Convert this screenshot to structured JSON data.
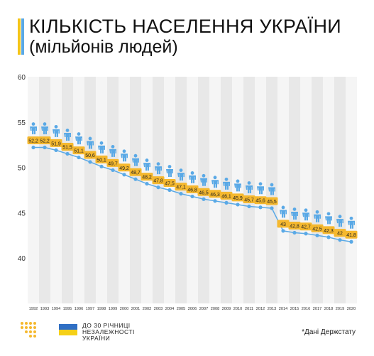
{
  "header": {
    "title": "КІЛЬКІСТЬ НАСЕЛЕННЯ УКРАЇНИ",
    "subtitle": "(мільйонів людей)"
  },
  "footer": {
    "anniversary_lines": [
      "ДО 30 РІЧНИЦІ",
      "НЕЗАЛЕЖНОСТІ",
      "УКРАЇНИ"
    ],
    "source": "*Дані Держстату"
  },
  "colors": {
    "accent_yellow": "#f5b82e",
    "series_blue": "#5aa9e6",
    "band_grey": "#e8e8e8",
    "flag_blue": "#2f6fc4",
    "flag_yellow": "#f5d018"
  },
  "icons": {
    "person": "person-icon",
    "logo": "dots-grid-logo-icon"
  },
  "chart_data": {
    "type": "line",
    "x": [
      "1992",
      "1993",
      "1994",
      "1995",
      "1996",
      "1997",
      "1998",
      "1999",
      "2000",
      "2001",
      "2002",
      "2003",
      "2004",
      "2005",
      "2006",
      "2007",
      "2008",
      "2009",
      "2010",
      "2011",
      "2012",
      "2013",
      "2014",
      "2015",
      "2016",
      "2017",
      "2018",
      "2019",
      "2020"
    ],
    "series": [
      {
        "values": [
          52.2,
          52.2,
          51.9,
          51.5,
          51.1,
          50.6,
          50.1,
          49.7,
          49.2,
          48.7,
          48.2,
          47.8,
          47.5,
          47.1,
          46.8,
          46.5,
          46.3,
          46.1,
          45.9,
          45.7,
          45.6,
          45.5,
          43,
          42.8,
          42.7,
          42.5,
          42.3,
          42,
          41.8
        ]
      }
    ],
    "value_labels": [
      "52,2",
      "52,2",
      "51,9",
      "51,5",
      "51,1",
      "50,6",
      "50,1",
      "49,7",
      "49,2",
      "48,7",
      "48,2",
      "47,8",
      "47,5",
      "47,1",
      "46,8",
      "46,5",
      "46,3",
      "46,1",
      "45,9",
      "45,7",
      "45,6",
      "45,5",
      "43",
      "42,8",
      "42,7",
      "42,5",
      "42,3",
      "42",
      "41,8"
    ],
    "y_ticks": [
      "40",
      "45",
      "50",
      "55",
      "60"
    ],
    "ylim": [
      35,
      60
    ],
    "grid": false,
    "bands": "alternating vertical grey bands per year"
  }
}
